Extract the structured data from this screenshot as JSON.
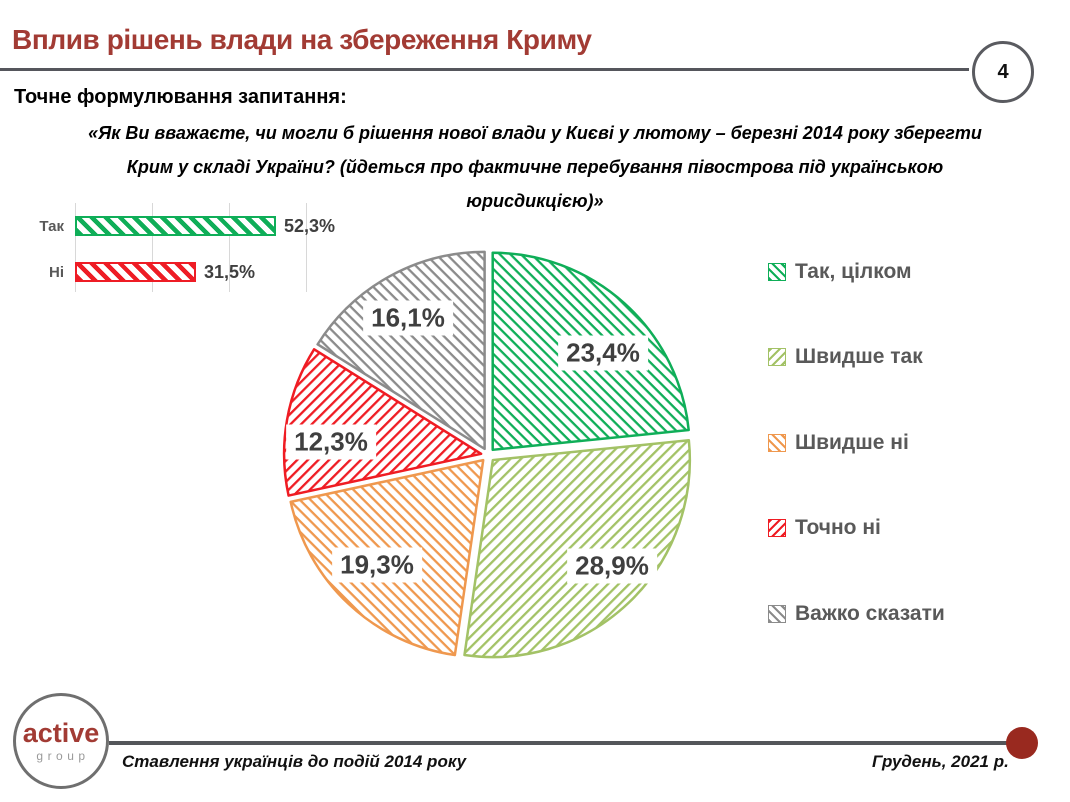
{
  "slide": {
    "page_number": "4",
    "title": "Вплив рішень влади на збереження Криму",
    "question_label": "Точне формулювання запитання:",
    "question_lines": [
      "«Як Ви вважаєте, чи могли б рішення нової влади у Києві у лютому – березні 2014 року зберегти",
      "Крим у складі України? (йдеться про фактичне перебування півострова під українською",
      "юрисдикцією)»"
    ]
  },
  "footer": {
    "logo_line1": "active",
    "logo_line2": "group",
    "caption_left": "Ставлення українців до подій 2014 року",
    "caption_right": "Грудень, 2021 р."
  },
  "colors": {
    "accent_red": "#A23B34",
    "footer_dot_red": "#99291F",
    "line_gray": "#54565A",
    "grid_gray": "#D8D8D8",
    "value_text": "#3F3F3F",
    "legend_text": "#595959"
  },
  "chart_data": [
    {
      "type": "bar",
      "orientation": "horizontal",
      "categories": [
        "Так",
        "Ні"
      ],
      "values": [
        52.3,
        31.5
      ],
      "value_labels": [
        "52,3%",
        "31,5%"
      ],
      "colors": [
        "#0FAE58",
        "#EE1C25"
      ],
      "hatch": [
        "diag-down",
        "diag-down"
      ],
      "xlim": [
        0,
        60
      ],
      "gridline_step": 20,
      "grid": true
    },
    {
      "type": "pie",
      "labels": [
        "Так, цілком",
        "Швидше так",
        "Швидше ні",
        "Точно ні",
        "Важко сказати"
      ],
      "values": [
        23.4,
        28.9,
        19.3,
        12.3,
        16.1
      ],
      "value_labels": [
        "23,4%",
        "28,9%",
        "19,3%",
        "12,3%",
        "16,1%"
      ],
      "colors": [
        "#0FAE58",
        "#A3C266",
        "#EF984E",
        "#EF1C23",
        "#8B8B8B"
      ],
      "hatch": [
        "diag-down",
        "diag-up",
        "diag-down",
        "diag-up",
        "diag-down"
      ],
      "start_angle_deg": 0,
      "direction": "clockwise",
      "explode": true,
      "legend_position": "right"
    }
  ]
}
